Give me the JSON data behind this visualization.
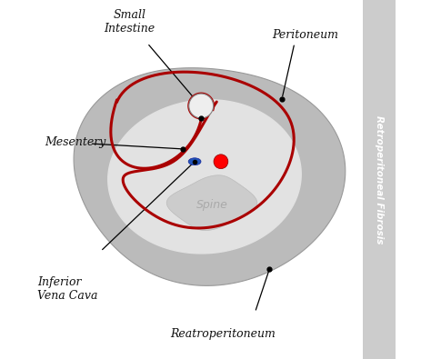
{
  "bg_color": "#ffffff",
  "outer_body_color": "#bbbbbb",
  "inner_color": "#e2e2e2",
  "spine_color": "#cccccc",
  "red_line_color": "#aa0000",
  "text_color": "#111111",
  "sidebar_color": "#cccccc",
  "sidebar_text": "Retroperitoneal Fibrosis",
  "labels": {
    "small_intestine": "Small\nIntestine",
    "peritoneum": "Peritoneum",
    "mesentery": "Mesentery",
    "spine": "Spine",
    "inferior_vena_cava": "Inferior\nVena Cava",
    "reatroperitoneum": "Reatroperitoneum"
  },
  "figsize": [
    4.74,
    3.95
  ],
  "dpi": 100
}
